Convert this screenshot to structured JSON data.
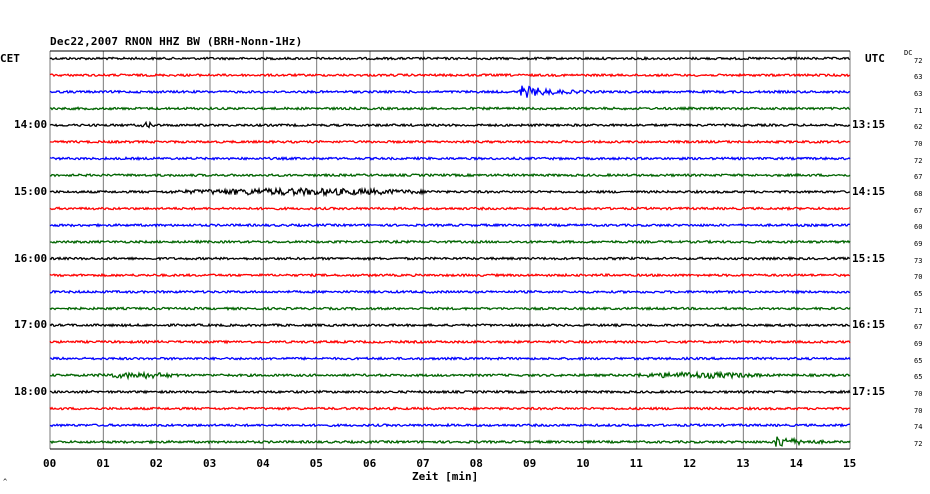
{
  "chart_data": {
    "type": "line",
    "title": "Dec22,2007   RNON HHZ BW (BRH-Nonn-1Hz)",
    "xlabel": "Zeit [min]",
    "left_axis_label": "CET",
    "right_axis_label": "UTC",
    "dc_label": "DC",
    "x_ticks": [
      "00",
      "01",
      "02",
      "03",
      "04",
      "05",
      "06",
      "07",
      "08",
      "09",
      "10",
      "11",
      "12",
      "13",
      "14",
      "15"
    ],
    "xlim": [
      0,
      15
    ],
    "trace_colors": [
      "#000000",
      "#ff0000",
      "#0000ff",
      "#006400"
    ],
    "cet_labels": [
      {
        "trace": 4,
        "text": "14:00"
      },
      {
        "trace": 8,
        "text": "15:00"
      },
      {
        "trace": 12,
        "text": "16:00"
      },
      {
        "trace": 16,
        "text": "17:00"
      },
      {
        "trace": 20,
        "text": "18:00"
      }
    ],
    "utc_labels": [
      {
        "trace": 4,
        "text": "13:15"
      },
      {
        "trace": 8,
        "text": "14:15"
      },
      {
        "trace": 12,
        "text": "15:15"
      },
      {
        "trace": 16,
        "text": "16:15"
      },
      {
        "trace": 20,
        "text": "17:15"
      }
    ],
    "dc_values": [
      "72",
      "63",
      "63",
      "71",
      "62",
      "70",
      "72",
      "67",
      "68",
      "67",
      "60",
      "69",
      "73",
      "70",
      "65",
      "71",
      "67",
      "69",
      "65",
      "65",
      "70",
      "70",
      "74",
      "72"
    ],
    "events": [
      {
        "trace": 2,
        "start_min": 8.8,
        "end_min": 10.2,
        "amplitude": "large"
      },
      {
        "trace": 4,
        "start_min": 1.7,
        "end_min": 2.0,
        "amplitude": "small"
      },
      {
        "trace": 8,
        "start_min": 2.0,
        "end_min": 7.4,
        "amplitude": "medium"
      },
      {
        "trace": 19,
        "start_min": 0.8,
        "end_min": 2.5,
        "amplitude": "small"
      },
      {
        "trace": 19,
        "start_min": 10.8,
        "end_min": 13.5,
        "amplitude": "small"
      },
      {
        "trace": 23,
        "start_min": 13.6,
        "end_min": 14.6,
        "amplitude": "large"
      }
    ]
  },
  "corner_mark": "^"
}
